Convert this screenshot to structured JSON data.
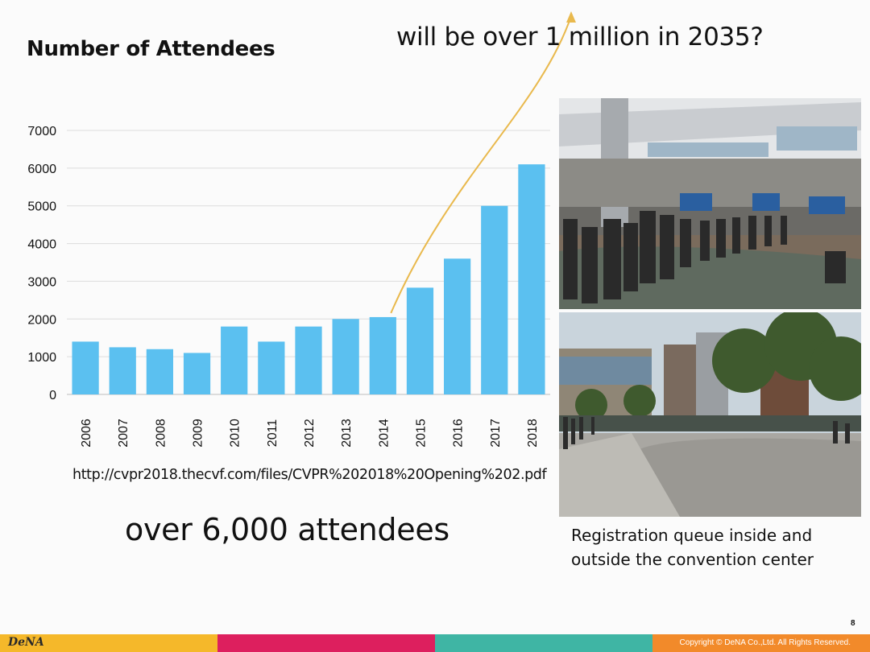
{
  "slide": {
    "title": "Number of Attendees",
    "headline": "will be over 1 million in 2035?",
    "source_url": "http://cvpr2018.thecvf.com/files/CVPR%202018%20Opening%202.pdf",
    "big_claim": "over 6,000 attendees",
    "photo_caption": "Registration queue inside and outside the convention center",
    "page_number": "8"
  },
  "footer": {
    "logo": "DeNA",
    "copyright": "Copyright © DeNA Co.,Ltd. All Rights Reserved.",
    "colors": [
      "#f5b82a",
      "#dd1f5e",
      "#3fb5a4",
      "#f28a2a"
    ]
  },
  "chart_data": {
    "type": "bar",
    "categories": [
      "2006",
      "2007",
      "2008",
      "2009",
      "2010",
      "2011",
      "2012",
      "2013",
      "2014",
      "2015",
      "2016",
      "2017",
      "2018"
    ],
    "values": [
      1400,
      1250,
      1200,
      1100,
      1800,
      1400,
      1800,
      2000,
      2050,
      2830,
      3600,
      5000,
      6100
    ],
    "yticks": [
      0,
      1000,
      2000,
      3000,
      4000,
      5000,
      6000,
      7000
    ],
    "ylim": [
      0,
      7000
    ],
    "bar_color": "#5bc0f0",
    "trend_arrow_color": "#e9b94d",
    "grid": true
  },
  "photos": [
    {
      "icon": "registration-queue-indoor-photo"
    },
    {
      "icon": "registration-queue-outdoor-photo"
    }
  ]
}
